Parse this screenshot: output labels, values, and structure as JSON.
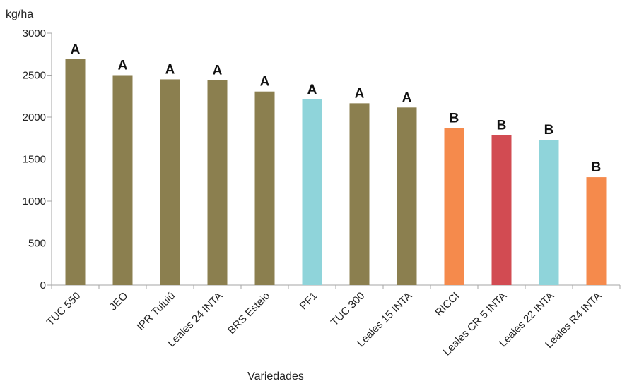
{
  "chart_data": {
    "type": "bar",
    "ylabel": "kg/ha",
    "xlabel": "Variedades",
    "ylim": [
      0,
      3000
    ],
    "yticks": [
      0,
      500,
      1000,
      1500,
      2000,
      2500,
      3000
    ],
    "grid": false,
    "categories": [
      "TUC 550",
      "JEO",
      "IPR Tuiuiú",
      "Leales 24 INTA",
      "BRS Esteio",
      "PF1",
      "TUC 300",
      "Leales 15 INTA",
      "RICCI",
      "Leales CR 5 INTA",
      "Leales 22 INTA",
      "Leales R4 INTA"
    ],
    "values": [
      2690,
      2500,
      2450,
      2440,
      2305,
      2210,
      2165,
      2115,
      1870,
      1785,
      1730,
      1285
    ],
    "significance": [
      "A",
      "A",
      "A",
      "A",
      "A",
      "A",
      "A",
      "A",
      "B",
      "B",
      "B",
      "B"
    ],
    "colors": [
      "#8b7f4f",
      "#8b7f4f",
      "#8b7f4f",
      "#8b7f4f",
      "#8b7f4f",
      "#8fd4da",
      "#8b7f4f",
      "#8b7f4f",
      "#f58a4c",
      "#d24b52",
      "#8fd4da",
      "#f58a4c"
    ]
  }
}
